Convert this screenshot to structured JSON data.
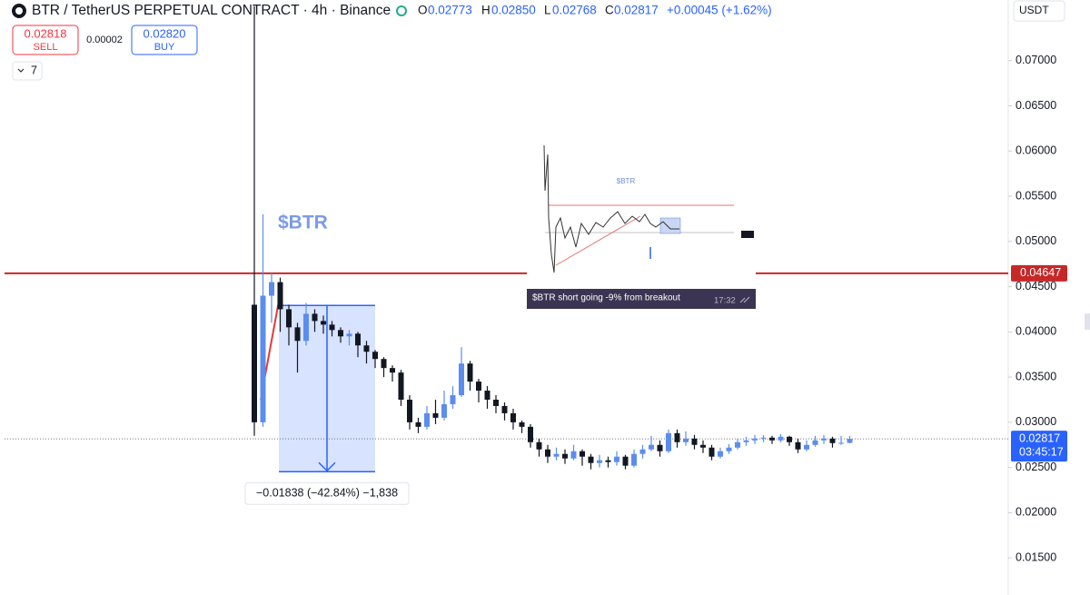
{
  "header": {
    "title": "BTR / TetherUS PERPETUAL CONTRACT · 4h · Binance",
    "open_label": "O",
    "open": "0.02773",
    "high_label": "H",
    "high": "0.02850",
    "low_label": "L",
    "low": "0.02768",
    "close_label": "C",
    "close": "0.02817",
    "change": "+0.00045 (+1.62%)",
    "sell_price": "0.02818",
    "sell": "SELL",
    "spread": "0.00002",
    "buy_price": "0.02820",
    "buy": "BUY",
    "indicators": "7",
    "currency": "USDT"
  },
  "chart_data": {
    "type": "candlestick",
    "annotation": "$BTR",
    "open": [
      0.043,
      0.03,
      0.044,
      0.0455,
      0.0425,
      0.0405,
      0.039,
      0.042,
      0.0412,
      0.0408,
      0.0402,
      0.0395,
      0.0398,
      0.0385,
      0.0378,
      0.037,
      0.036,
      0.0355,
      0.0325,
      0.03,
      0.0295,
      0.031,
      0.0305,
      0.032,
      0.033,
      0.0365,
      0.0345,
      0.0335,
      0.0325,
      0.0318,
      0.031,
      0.03,
      0.0295,
      0.0278,
      0.027,
      0.0262,
      0.0265,
      0.026,
      0.0268,
      0.0262,
      0.0255,
      0.0258,
      0.0256,
      0.0262,
      0.0252,
      0.0265,
      0.027,
      0.0275,
      0.0268,
      0.0288,
      0.0278,
      0.0282,
      0.0275,
      0.0272,
      0.0262,
      0.0268,
      0.0272,
      0.0278,
      0.028,
      0.0282,
      0.0283,
      0.028,
      0.0284,
      0.0278,
      0.027,
      0.0275,
      0.028,
      0.0282,
      0.0277,
      0.02773
    ],
    "high": [
      0.076,
      0.053,
      0.0465,
      0.046,
      0.043,
      0.041,
      0.0432,
      0.0425,
      0.0418,
      0.0412,
      0.0405,
      0.0402,
      0.04,
      0.039,
      0.038,
      0.0372,
      0.0363,
      0.0358,
      0.033,
      0.0305,
      0.0318,
      0.0325,
      0.0335,
      0.034,
      0.0383,
      0.0368,
      0.0348,
      0.034,
      0.033,
      0.0322,
      0.0315,
      0.0302,
      0.0298,
      0.0282,
      0.0275,
      0.0272,
      0.027,
      0.0275,
      0.027,
      0.0265,
      0.0264,
      0.0262,
      0.0268,
      0.0264,
      0.027,
      0.0275,
      0.0285,
      0.028,
      0.0292,
      0.0292,
      0.029,
      0.0286,
      0.028,
      0.0275,
      0.0272,
      0.0276,
      0.0282,
      0.0284,
      0.0286,
      0.0286,
      0.0285,
      0.0287,
      0.0285,
      0.0282,
      0.028,
      0.0285,
      0.0286,
      0.0284,
      0.0285,
      0.0285
    ],
    "low": [
      0.0285,
      0.0295,
      0.041,
      0.04,
      0.0385,
      0.0355,
      0.0385,
      0.04,
      0.0398,
      0.0395,
      0.0388,
      0.0385,
      0.0372,
      0.0365,
      0.036,
      0.035,
      0.0345,
      0.0318,
      0.0292,
      0.0288,
      0.0292,
      0.0298,
      0.0302,
      0.0315,
      0.0328,
      0.0335,
      0.0322,
      0.0315,
      0.031,
      0.0302,
      0.0292,
      0.0288,
      0.0272,
      0.0262,
      0.0255,
      0.0258,
      0.0254,
      0.0258,
      0.0252,
      0.0248,
      0.025,
      0.025,
      0.0252,
      0.0248,
      0.025,
      0.026,
      0.0268,
      0.0262,
      0.0266,
      0.0272,
      0.0274,
      0.027,
      0.0266,
      0.0258,
      0.026,
      0.0265,
      0.027,
      0.0274,
      0.0276,
      0.0278,
      0.0276,
      0.0278,
      0.0274,
      0.0266,
      0.0268,
      0.0273,
      0.0276,
      0.0272,
      0.0275,
      0.02768
    ],
    "close": [
      0.03,
      0.044,
      0.0455,
      0.0425,
      0.0405,
      0.039,
      0.042,
      0.0412,
      0.0408,
      0.0402,
      0.0395,
      0.0398,
      0.0385,
      0.0378,
      0.037,
      0.036,
      0.0355,
      0.0325,
      0.03,
      0.0295,
      0.031,
      0.0305,
      0.032,
      0.033,
      0.0365,
      0.0345,
      0.0335,
      0.0325,
      0.0318,
      0.031,
      0.03,
      0.0295,
      0.0278,
      0.027,
      0.0262,
      0.0265,
      0.026,
      0.0268,
      0.0262,
      0.0255,
      0.0258,
      0.0256,
      0.0262,
      0.0252,
      0.0265,
      0.027,
      0.0275,
      0.0268,
      0.0288,
      0.0278,
      0.0282,
      0.0275,
      0.0272,
      0.0262,
      0.0268,
      0.0272,
      0.0278,
      0.028,
      0.0282,
      0.0283,
      0.028,
      0.0284,
      0.0278,
      0.027,
      0.0275,
      0.028,
      0.0282,
      0.0277,
      0.02773,
      0.02817
    ],
    "up_color": "#5b8def",
    "down_color": "#131722",
    "ylim": [
      0.0109,
      0.0767
    ],
    "yticks": [
      {
        "value": 0.015,
        "label": "0.01500"
      },
      {
        "value": 0.02,
        "label": "0.02000"
      },
      {
        "value": 0.025,
        "label": "0.02500"
      },
      {
        "value": 0.03,
        "label": "0.03000"
      },
      {
        "value": 0.035,
        "label": "0.03500"
      },
      {
        "value": 0.04,
        "label": "0.04000"
      },
      {
        "value": 0.045,
        "label": "0.04500"
      },
      {
        "value": 0.05,
        "label": "0.05000"
      },
      {
        "value": 0.055,
        "label": "0.05500"
      },
      {
        "value": 0.06,
        "label": "0.06000"
      },
      {
        "value": 0.065,
        "label": "0.06500"
      },
      {
        "value": 0.07,
        "label": "0.07000"
      }
    ],
    "resistance": {
      "value": 0.04647,
      "label": "0.04647",
      "color": "#c62828"
    },
    "last_price": {
      "value": 0.02817,
      "label": "0.02817",
      "countdown": "03:45:17",
      "color": "#2962ff"
    },
    "measure": {
      "top": 0.04292,
      "bottom": 0.02454,
      "label": "−0.01838 (−42.84%) −1,838"
    },
    "inset": {
      "title": "$BTR",
      "caption": "$BTR short going -9% from breakout",
      "time": "17:32"
    }
  }
}
